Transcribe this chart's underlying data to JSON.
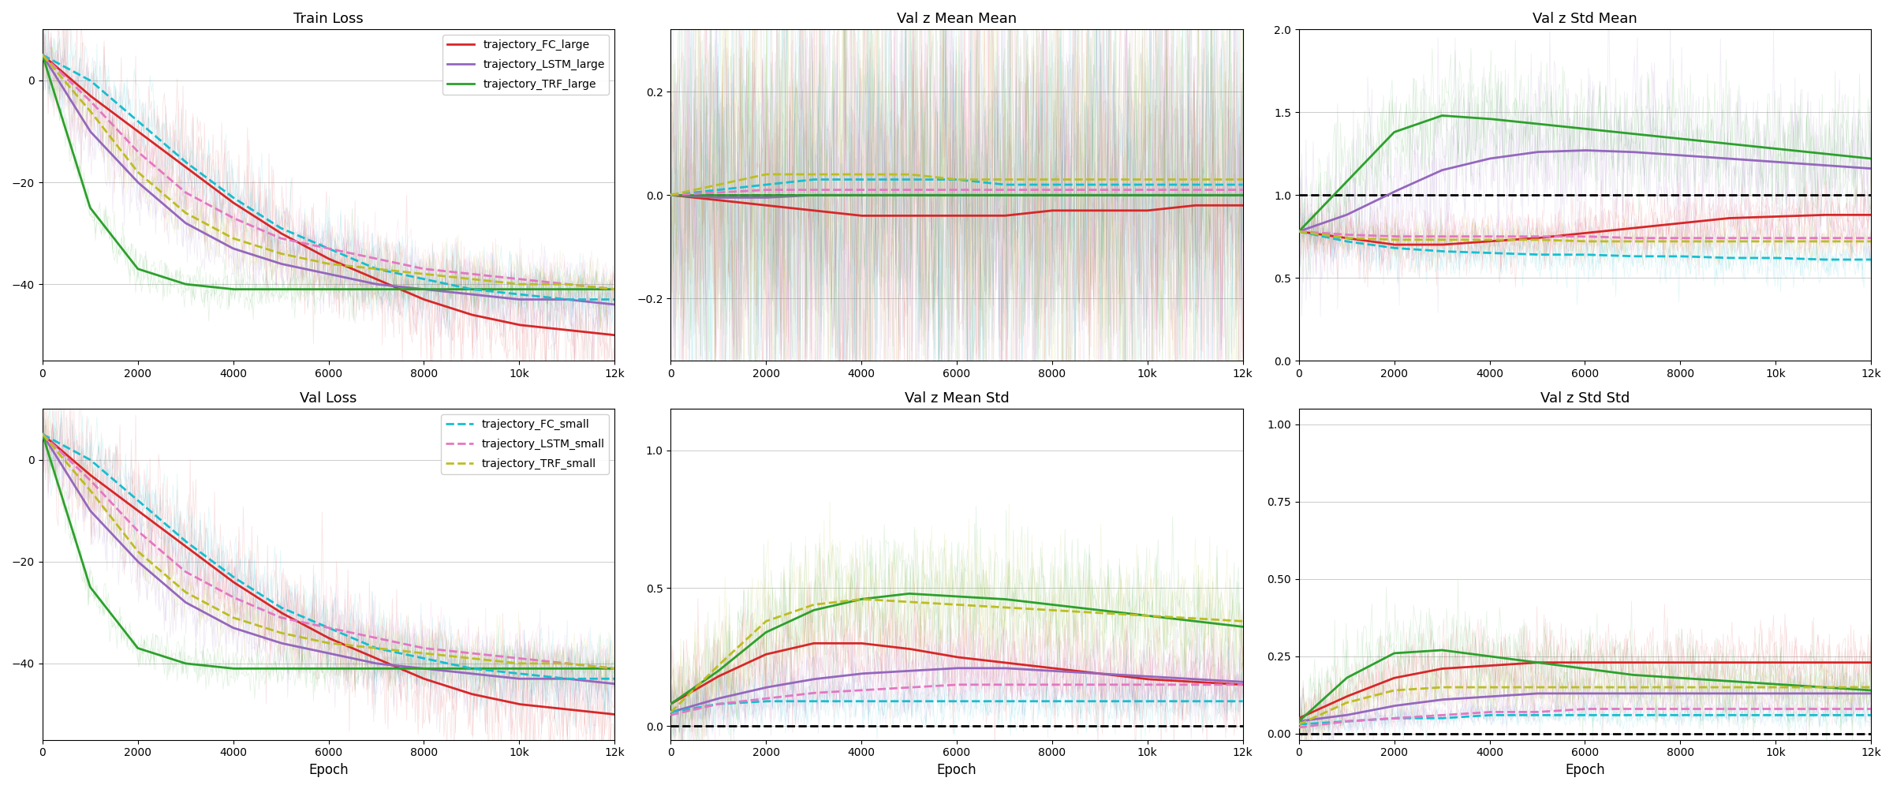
{
  "subplot_titles": [
    "Train Loss",
    "Val z Mean Mean",
    "Val z Std Mean",
    "Val Loss",
    "Val z Mean Std",
    "Val z Std Std"
  ],
  "xlim": [
    0,
    12000
  ],
  "xticks": [
    0,
    2000,
    4000,
    6000,
    8000,
    10000,
    12000
  ],
  "xtick_labels": [
    "0",
    "2000",
    "4000",
    "6000",
    "8000",
    "10k",
    "12k"
  ],
  "xlabel": "Epoch",
  "colors": {
    "FC_large": "#d62728",
    "LSTM_large": "#9467bd",
    "TRF_large": "#2ca02c",
    "FC_small": "#17becf",
    "LSTM_small": "#e377c2",
    "TRF_small": "#bcbd22"
  },
  "legend_large": [
    "trajectory_FC_large",
    "trajectory_LSTM_large",
    "trajectory_TRF_large"
  ],
  "legend_small": [
    "trajectory_FC_small",
    "trajectory_LSTM_small",
    "trajectory_TRF_small"
  ],
  "plots": {
    "train_loss": {
      "ylim": [
        -55,
        10
      ],
      "yticks": [
        0,
        -20,
        -40
      ],
      "hline": null,
      "FC_large": {
        "smooth": [
          5,
          -3,
          -10,
          -17,
          -24,
          -30,
          -35,
          -39,
          -43,
          -46,
          -48,
          -49,
          -50
        ],
        "noisy_amp": 6
      },
      "LSTM_large": {
        "smooth": [
          5,
          -10,
          -20,
          -28,
          -33,
          -36,
          -38,
          -40,
          -41,
          -42,
          -43,
          -43,
          -44
        ],
        "noisy_amp": 4
      },
      "TRF_large": {
        "smooth": [
          5,
          -25,
          -37,
          -40,
          -41,
          -41,
          -41,
          -41,
          -41,
          -41,
          -41,
          -41,
          -41
        ],
        "noisy_amp": 2
      },
      "FC_small": {
        "smooth": [
          5,
          0,
          -8,
          -16,
          -23,
          -29,
          -33,
          -37,
          -39,
          -41,
          -42,
          -43,
          -43
        ],
        "noisy_amp": 4
      },
      "LSTM_small": {
        "smooth": [
          5,
          -4,
          -14,
          -22,
          -27,
          -31,
          -33,
          -35,
          -37,
          -38,
          -39,
          -40,
          -41
        ],
        "noisy_amp": 3
      },
      "TRF_small": {
        "smooth": [
          5,
          -6,
          -18,
          -26,
          -31,
          -34,
          -36,
          -37,
          -38,
          -39,
          -40,
          -40,
          -41
        ],
        "noisy_amp": 3
      }
    },
    "val_z_mean_mean": {
      "ylim": [
        -0.32,
        0.32
      ],
      "yticks": [
        -0.2,
        0.0,
        0.2
      ],
      "hline": 0.0,
      "FC_large": {
        "smooth": [
          0.0,
          -0.01,
          -0.02,
          -0.03,
          -0.04,
          -0.04,
          -0.04,
          -0.04,
          -0.03,
          -0.03,
          -0.03,
          -0.02,
          -0.02
        ],
        "noisy_amp": 0.22
      },
      "LSTM_large": {
        "smooth": [
          0.0,
          -0.005,
          -0.005,
          0.0,
          0.0,
          0.0,
          0.0,
          0.0,
          0.0,
          0.0,
          0.0,
          0.0,
          0.0
        ],
        "noisy_amp": 0.2
      },
      "TRF_large": {
        "smooth": [
          0.0,
          0.0,
          0.0,
          0.0,
          0.0,
          0.0,
          0.0,
          0.0,
          0.0,
          0.0,
          0.0,
          0.0,
          0.0
        ],
        "noisy_amp": 0.2
      },
      "FC_small": {
        "smooth": [
          0.0,
          0.01,
          0.02,
          0.03,
          0.03,
          0.03,
          0.03,
          0.02,
          0.02,
          0.02,
          0.02,
          0.02,
          0.02
        ],
        "noisy_amp": 0.22
      },
      "LSTM_small": {
        "smooth": [
          0.0,
          0.005,
          0.01,
          0.01,
          0.01,
          0.01,
          0.01,
          0.01,
          0.01,
          0.01,
          0.01,
          0.01,
          0.01
        ],
        "noisy_amp": 0.2
      },
      "TRF_small": {
        "smooth": [
          0.0,
          0.02,
          0.04,
          0.04,
          0.04,
          0.04,
          0.03,
          0.03,
          0.03,
          0.03,
          0.03,
          0.03,
          0.03
        ],
        "noisy_amp": 0.22
      }
    },
    "val_z_std_mean": {
      "ylim": [
        0.0,
        2.0
      ],
      "yticks": [
        0.0,
        0.5,
        1.0,
        1.5,
        2.0
      ],
      "hline": 1.0,
      "FC_large": {
        "smooth": [
          0.78,
          0.74,
          0.7,
          0.7,
          0.72,
          0.74,
          0.77,
          0.8,
          0.83,
          0.86,
          0.87,
          0.88,
          0.88
        ],
        "noisy_amp": 0.1
      },
      "LSTM_large": {
        "smooth": [
          0.78,
          0.88,
          1.02,
          1.15,
          1.22,
          1.26,
          1.27,
          1.26,
          1.24,
          1.22,
          1.2,
          1.18,
          1.16
        ],
        "noisy_amp": 0.25
      },
      "TRF_large": {
        "smooth": [
          0.78,
          1.08,
          1.38,
          1.48,
          1.46,
          1.43,
          1.4,
          1.37,
          1.34,
          1.31,
          1.28,
          1.25,
          1.22
        ],
        "noisy_amp": 0.18
      },
      "FC_small": {
        "smooth": [
          0.78,
          0.72,
          0.68,
          0.66,
          0.65,
          0.64,
          0.64,
          0.63,
          0.63,
          0.62,
          0.62,
          0.61,
          0.61
        ],
        "noisy_amp": 0.08
      },
      "LSTM_small": {
        "smooth": [
          0.78,
          0.76,
          0.75,
          0.75,
          0.75,
          0.75,
          0.75,
          0.74,
          0.74,
          0.74,
          0.74,
          0.74,
          0.74
        ],
        "noisy_amp": 0.07
      },
      "TRF_small": {
        "smooth": [
          0.78,
          0.74,
          0.73,
          0.73,
          0.73,
          0.73,
          0.72,
          0.72,
          0.72,
          0.72,
          0.72,
          0.72,
          0.72
        ],
        "noisy_amp": 0.06
      }
    },
    "val_loss": {
      "ylim": [
        -55,
        10
      ],
      "yticks": [
        0,
        -20,
        -40
      ],
      "hline": null,
      "FC_large": {
        "smooth": [
          5,
          -3,
          -10,
          -17,
          -24,
          -30,
          -35,
          -39,
          -43,
          -46,
          -48,
          -49,
          -50
        ],
        "noisy_amp": 6
      },
      "LSTM_large": {
        "smooth": [
          5,
          -10,
          -20,
          -28,
          -33,
          -36,
          -38,
          -40,
          -41,
          -42,
          -43,
          -43,
          -44
        ],
        "noisy_amp": 4
      },
      "TRF_large": {
        "smooth": [
          5,
          -25,
          -37,
          -40,
          -41,
          -41,
          -41,
          -41,
          -41,
          -41,
          -41,
          -41,
          -41
        ],
        "noisy_amp": 2
      },
      "FC_small": {
        "smooth": [
          5,
          0,
          -8,
          -16,
          -23,
          -29,
          -33,
          -37,
          -39,
          -41,
          -42,
          -43,
          -43
        ],
        "noisy_amp": 4
      },
      "LSTM_small": {
        "smooth": [
          5,
          -4,
          -14,
          -22,
          -27,
          -31,
          -33,
          -35,
          -37,
          -38,
          -39,
          -40,
          -41
        ],
        "noisy_amp": 3
      },
      "TRF_small": {
        "smooth": [
          5,
          -6,
          -18,
          -26,
          -31,
          -34,
          -36,
          -37,
          -38,
          -39,
          -40,
          -40,
          -41
        ],
        "noisy_amp": 3
      }
    },
    "val_z_mean_std": {
      "ylim": [
        -0.05,
        1.15
      ],
      "yticks": [
        0.0,
        0.5,
        1.0
      ],
      "hline": 0.0,
      "FC_large": {
        "smooth": [
          0.08,
          0.18,
          0.26,
          0.3,
          0.3,
          0.28,
          0.25,
          0.23,
          0.21,
          0.19,
          0.17,
          0.16,
          0.15
        ],
        "noisy_amp": 0.1
      },
      "LSTM_large": {
        "smooth": [
          0.05,
          0.1,
          0.14,
          0.17,
          0.19,
          0.2,
          0.21,
          0.21,
          0.2,
          0.19,
          0.18,
          0.17,
          0.16
        ],
        "noisy_amp": 0.08
      },
      "TRF_large": {
        "smooth": [
          0.08,
          0.2,
          0.34,
          0.42,
          0.46,
          0.48,
          0.47,
          0.46,
          0.44,
          0.42,
          0.4,
          0.38,
          0.36
        ],
        "noisy_amp": 0.12
      },
      "FC_small": {
        "smooth": [
          0.05,
          0.08,
          0.09,
          0.09,
          0.09,
          0.09,
          0.09,
          0.09,
          0.09,
          0.09,
          0.09,
          0.09,
          0.09
        ],
        "noisy_amp": 0.05
      },
      "LSTM_small": {
        "smooth": [
          0.04,
          0.08,
          0.1,
          0.12,
          0.13,
          0.14,
          0.15,
          0.15,
          0.15,
          0.15,
          0.15,
          0.15,
          0.15
        ],
        "noisy_amp": 0.05
      },
      "TRF_small": {
        "smooth": [
          0.05,
          0.22,
          0.38,
          0.44,
          0.46,
          0.45,
          0.44,
          0.43,
          0.42,
          0.41,
          0.4,
          0.39,
          0.38
        ],
        "noisy_amp": 0.12
      }
    },
    "val_z_std_std": {
      "ylim": [
        -0.02,
        1.05
      ],
      "yticks": [
        0.0,
        0.25,
        0.5,
        0.75,
        1.0
      ],
      "hline": 0.0,
      "FC_large": {
        "smooth": [
          0.05,
          0.12,
          0.18,
          0.21,
          0.22,
          0.23,
          0.23,
          0.23,
          0.23,
          0.23,
          0.23,
          0.23,
          0.23
        ],
        "noisy_amp": 0.06
      },
      "LSTM_large": {
        "smooth": [
          0.04,
          0.06,
          0.09,
          0.11,
          0.12,
          0.13,
          0.13,
          0.13,
          0.13,
          0.13,
          0.13,
          0.13,
          0.13
        ],
        "noisy_amp": 0.04
      },
      "TRF_large": {
        "smooth": [
          0.04,
          0.18,
          0.26,
          0.27,
          0.25,
          0.23,
          0.21,
          0.19,
          0.18,
          0.17,
          0.16,
          0.15,
          0.14
        ],
        "noisy_amp": 0.07
      },
      "FC_small": {
        "smooth": [
          0.03,
          0.04,
          0.05,
          0.05,
          0.06,
          0.06,
          0.06,
          0.06,
          0.06,
          0.06,
          0.06,
          0.06,
          0.06
        ],
        "noisy_amp": 0.02
      },
      "LSTM_small": {
        "smooth": [
          0.02,
          0.04,
          0.05,
          0.06,
          0.07,
          0.07,
          0.08,
          0.08,
          0.08,
          0.08,
          0.08,
          0.08,
          0.08
        ],
        "noisy_amp": 0.02
      },
      "TRF_small": {
        "smooth": [
          0.03,
          0.1,
          0.14,
          0.15,
          0.15,
          0.15,
          0.15,
          0.15,
          0.15,
          0.15,
          0.15,
          0.15,
          0.15
        ],
        "noisy_amp": 0.04
      }
    }
  }
}
